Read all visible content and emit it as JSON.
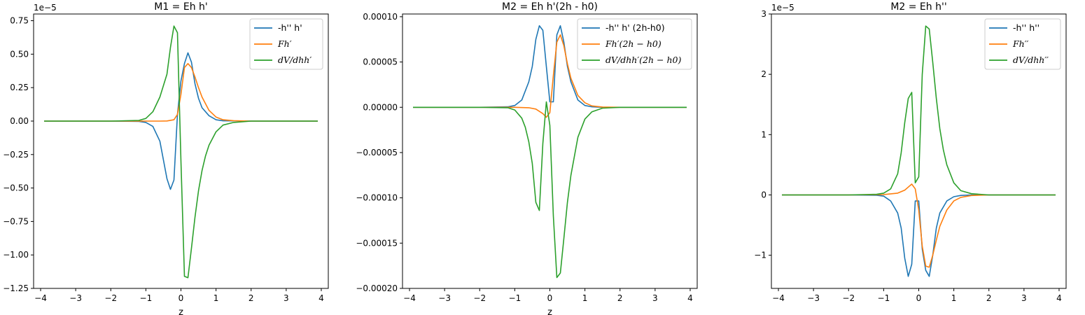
{
  "chart_data": [
    {
      "type": "line",
      "title": "M1 = Eh h'",
      "xlabel": "z",
      "ylabel": "",
      "xlim": [
        -4.2,
        4.2
      ],
      "ylim": [
        -1.25e-05,
        8e-06
      ],
      "offset_label": "1e−5",
      "xticks": [
        -4,
        -3,
        -2,
        -1,
        0,
        1,
        2,
        3,
        4
      ],
      "xtick_labels": [
        "−4",
        "−3",
        "−2",
        "−1",
        "0",
        "1",
        "2",
        "3",
        "4"
      ],
      "yticks": [
        -1.25e-05,
        -1e-05,
        -7.5e-06,
        -5e-06,
        -2.5e-06,
        0,
        2.5e-06,
        5e-06,
        7.5e-06
      ],
      "ytick_labels": [
        "−1.25",
        "−1.00",
        "−0.75",
        "−0.50",
        "−0.25",
        "0.00",
        "0.25",
        "0.50",
        "0.75"
      ],
      "legend_position": "upper-right",
      "series": [
        {
          "name": "-h'' h'",
          "math": false,
          "color": "#1f77b4",
          "x": [
            -3.9,
            -2.0,
            -1.2,
            -1.0,
            -0.8,
            -0.6,
            -0.4,
            -0.3,
            -0.2,
            -0.1,
            0.0,
            0.1,
            0.2,
            0.3,
            0.4,
            0.5,
            0.6,
            0.8,
            1.0,
            1.2,
            2.0,
            3.9
          ],
          "y": [
            0,
            0,
            -2e-08,
            -1e-07,
            -4e-07,
            -1.5e-06,
            -4.3e-06,
            -5.1e-06,
            -4.4e-06,
            5e-07,
            3e-06,
            4.3e-06,
            5.1e-06,
            4.4e-06,
            2.8e-06,
            1.7e-06,
            1e-06,
            4e-07,
            1e-07,
            2e-08,
            0,
            0
          ]
        },
        {
          "name": "Fh′",
          "math": true,
          "color": "#ff7f0e",
          "x": [
            -3.9,
            -2.0,
            -1.0,
            -0.6,
            -0.4,
            -0.2,
            -0.1,
            0.0,
            0.1,
            0.2,
            0.3,
            0.4,
            0.5,
            0.6,
            0.8,
            1.0,
            1.2,
            1.5,
            2.0,
            3.9
          ],
          "y": [
            0,
            0,
            0,
            0,
            1e-08,
            1e-07,
            5e-07,
            2e-06,
            4e-06,
            4.3e-06,
            4e-06,
            3.3e-06,
            2.5e-06,
            1.8e-06,
            8e-07,
            3e-07,
            1e-07,
            3e-08,
            0,
            0
          ]
        },
        {
          "name": "dV/dhh′",
          "math": true,
          "color": "#2ca02c",
          "x": [
            -3.9,
            -2.0,
            -1.2,
            -1.0,
            -0.8,
            -0.6,
            -0.4,
            -0.3,
            -0.2,
            -0.1,
            0.0,
            0.1,
            0.2,
            0.3,
            0.4,
            0.5,
            0.6,
            0.7,
            0.8,
            1.0,
            1.2,
            1.5,
            2.0,
            3.9
          ],
          "y": [
            0,
            0,
            5e-08,
            2e-07,
            7e-07,
            1.8e-06,
            3.5e-06,
            5.5e-06,
            7.1e-06,
            6.6e-06,
            -3e-06,
            -1.16e-05,
            -1.17e-05,
            -9.5e-06,
            -7.2e-06,
            -5.2e-06,
            -3.7e-06,
            -2.6e-06,
            -1.8e-06,
            -8e-07,
            -3e-07,
            -1e-07,
            0,
            0
          ]
        }
      ]
    },
    {
      "type": "line",
      "title": "M2 = Eh h'(2h - h0)",
      "xlabel": "z",
      "ylabel": "",
      "xlim": [
        -4.2,
        4.2
      ],
      "ylim": [
        -0.0002,
        0.000103
      ],
      "offset_label": "",
      "xticks": [
        -4,
        -3,
        -2,
        -1,
        0,
        1,
        2,
        3,
        4
      ],
      "xtick_labels": [
        "−4",
        "−3",
        "−2",
        "−1",
        "0",
        "1",
        "2",
        "3",
        "4"
      ],
      "yticks": [
        -0.0002,
        -0.00015,
        -0.0001,
        -5e-05,
        0,
        5e-05,
        0.0001
      ],
      "ytick_labels": [
        "−0.00020",
        "−0.00015",
        "−0.00010",
        "−0.00005",
        "0.00000",
        "0.00005",
        "0.00010"
      ],
      "legend_position": "upper-right",
      "series": [
        {
          "name": "-h'' h' (2h-h0)",
          "math": false,
          "color": "#1f77b4",
          "x": [
            -3.9,
            -2.0,
            -1.2,
            -1.0,
            -0.8,
            -0.6,
            -0.5,
            -0.4,
            -0.3,
            -0.2,
            -0.1,
            0.0,
            0.1,
            0.2,
            0.3,
            0.4,
            0.5,
            0.6,
            0.8,
            1.0,
            1.2,
            1.5,
            2.0,
            3.9
          ],
          "y": [
            0,
            0,
            5e-07,
            2e-06,
            8e-06,
            2.8e-05,
            4.5e-05,
            7.5e-05,
            9e-05,
            8.5e-05,
            4.5e-05,
            6e-06,
            6e-06,
            8e-05,
            9e-05,
            7.2e-05,
            4.5e-05,
            2.8e-05,
            8e-06,
            2e-06,
            5e-07,
            0,
            0,
            0
          ]
        },
        {
          "name": "Fh′(2h − h0)",
          "math": true,
          "color": "#ff7f0e",
          "x": [
            -3.9,
            -2.0,
            -1.0,
            -0.6,
            -0.4,
            -0.2,
            -0.1,
            0.0,
            0.1,
            0.2,
            0.3,
            0.4,
            0.5,
            0.6,
            0.8,
            1.0,
            1.2,
            1.5,
            2.0,
            3.9
          ],
          "y": [
            0,
            0,
            0,
            -5e-07,
            -2e-06,
            -7e-06,
            -1.1e-05,
            -6e-06,
            3.5e-05,
            7.2e-05,
            8e-05,
            6.8e-05,
            4.8e-05,
            3.2e-05,
            1.3e-05,
            5e-06,
            1.5e-06,
            3e-07,
            0,
            0
          ]
        },
        {
          "name": "dV/dhh′(2h − h0)",
          "math": true,
          "color": "#2ca02c",
          "x": [
            -3.9,
            -2.0,
            -1.2,
            -1.0,
            -0.8,
            -0.7,
            -0.6,
            -0.5,
            -0.4,
            -0.3,
            -0.2,
            -0.1,
            0.0,
            0.1,
            0.2,
            0.3,
            0.4,
            0.5,
            0.6,
            0.8,
            1.0,
            1.2,
            1.5,
            2.0,
            3.9
          ],
          "y": [
            0,
            0,
            -5e-07,
            -3e-06,
            -1.2e-05,
            -2.2e-05,
            -3.8e-05,
            -6.2e-05,
            -0.000105,
            -0.000114,
            -4e-05,
            6e-06,
            -2e-05,
            -0.00012,
            -0.000188,
            -0.000183,
            -0.000145,
            -0.000105,
            -7.5e-05,
            -3.3e-05,
            -1.3e-05,
            -5e-06,
            -1e-06,
            0,
            0
          ]
        }
      ]
    },
    {
      "type": "line",
      "title": "M2 = Eh h''",
      "xlabel": "",
      "ylabel": "",
      "xlim": [
        -4.2,
        4.2
      ],
      "ylim": [
        -1.55e-05,
        3e-05
      ],
      "offset_label": "1e−5",
      "xticks": [
        -4,
        -3,
        -2,
        -1,
        0,
        1,
        2,
        3,
        4
      ],
      "xtick_labels": [
        "−4",
        "−3",
        "−2",
        "−1",
        "0",
        "1",
        "2",
        "3",
        "4"
      ],
      "yticks": [
        -1e-05,
        0,
        1e-05,
        2e-05,
        3e-05
      ],
      "ytick_labels": [
        "−1",
        "0",
        "1",
        "2",
        "3"
      ],
      "legend_position": "upper-right",
      "series": [
        {
          "name": "-h'' h''",
          "math": false,
          "color": "#1f77b4",
          "x": [
            -3.9,
            -2.0,
            -1.2,
            -1.0,
            -0.8,
            -0.6,
            -0.5,
            -0.4,
            -0.3,
            -0.2,
            -0.1,
            0.0,
            0.1,
            0.2,
            0.3,
            0.4,
            0.5,
            0.6,
            0.8,
            1.0,
            1.2,
            1.5,
            2.0,
            3.9
          ],
          "y": [
            0,
            0,
            -5e-08,
            -2e-07,
            -1e-06,
            -3e-06,
            -5.5e-06,
            -1.05e-05,
            -1.35e-05,
            -1.15e-05,
            -1e-06,
            -1e-06,
            -9e-06,
            -1.25e-05,
            -1.35e-05,
            -1e-05,
            -5.5e-06,
            -3e-06,
            -1e-06,
            -3e-07,
            -8e-08,
            0,
            0,
            0
          ]
        },
        {
          "name": "Fh′′",
          "math": true,
          "color": "#ff7f0e",
          "x": [
            -3.9,
            -2.0,
            -1.0,
            -0.6,
            -0.4,
            -0.3,
            -0.2,
            -0.1,
            0.0,
            0.1,
            0.2,
            0.3,
            0.4,
            0.5,
            0.6,
            0.8,
            1.0,
            1.2,
            1.5,
            2.0,
            3.9
          ],
          "y": [
            0,
            0,
            5e-08,
            3e-07,
            8e-07,
            1.3e-06,
            1.8e-06,
            1e-06,
            -2.5e-06,
            -8.5e-06,
            -1.18e-05,
            -1.2e-05,
            -1e-05,
            -7.5e-06,
            -5.2e-06,
            -2.5e-06,
            -1e-06,
            -4e-07,
            -1e-07,
            0,
            0
          ]
        },
        {
          "name": "dV/dhh′′",
          "math": true,
          "color": "#2ca02c",
          "x": [
            -3.9,
            -2.0,
            -1.2,
            -1.0,
            -0.8,
            -0.6,
            -0.5,
            -0.4,
            -0.3,
            -0.2,
            -0.1,
            0.0,
            0.1,
            0.2,
            0.3,
            0.4,
            0.5,
            0.6,
            0.7,
            0.8,
            1.0,
            1.2,
            1.5,
            2.0,
            3.9
          ],
          "y": [
            0,
            0,
            1e-07,
            3e-07,
            1e-06,
            3.5e-06,
            7e-06,
            1.2e-05,
            1.6e-05,
            1.7e-05,
            2e-06,
            3e-06,
            2e-05,
            2.8e-05,
            2.75e-05,
            2.2e-05,
            1.6e-05,
            1.1e-05,
            7.5e-06,
            5e-06,
            2e-06,
            7e-07,
            2e-07,
            0,
            0
          ]
        }
      ]
    }
  ]
}
